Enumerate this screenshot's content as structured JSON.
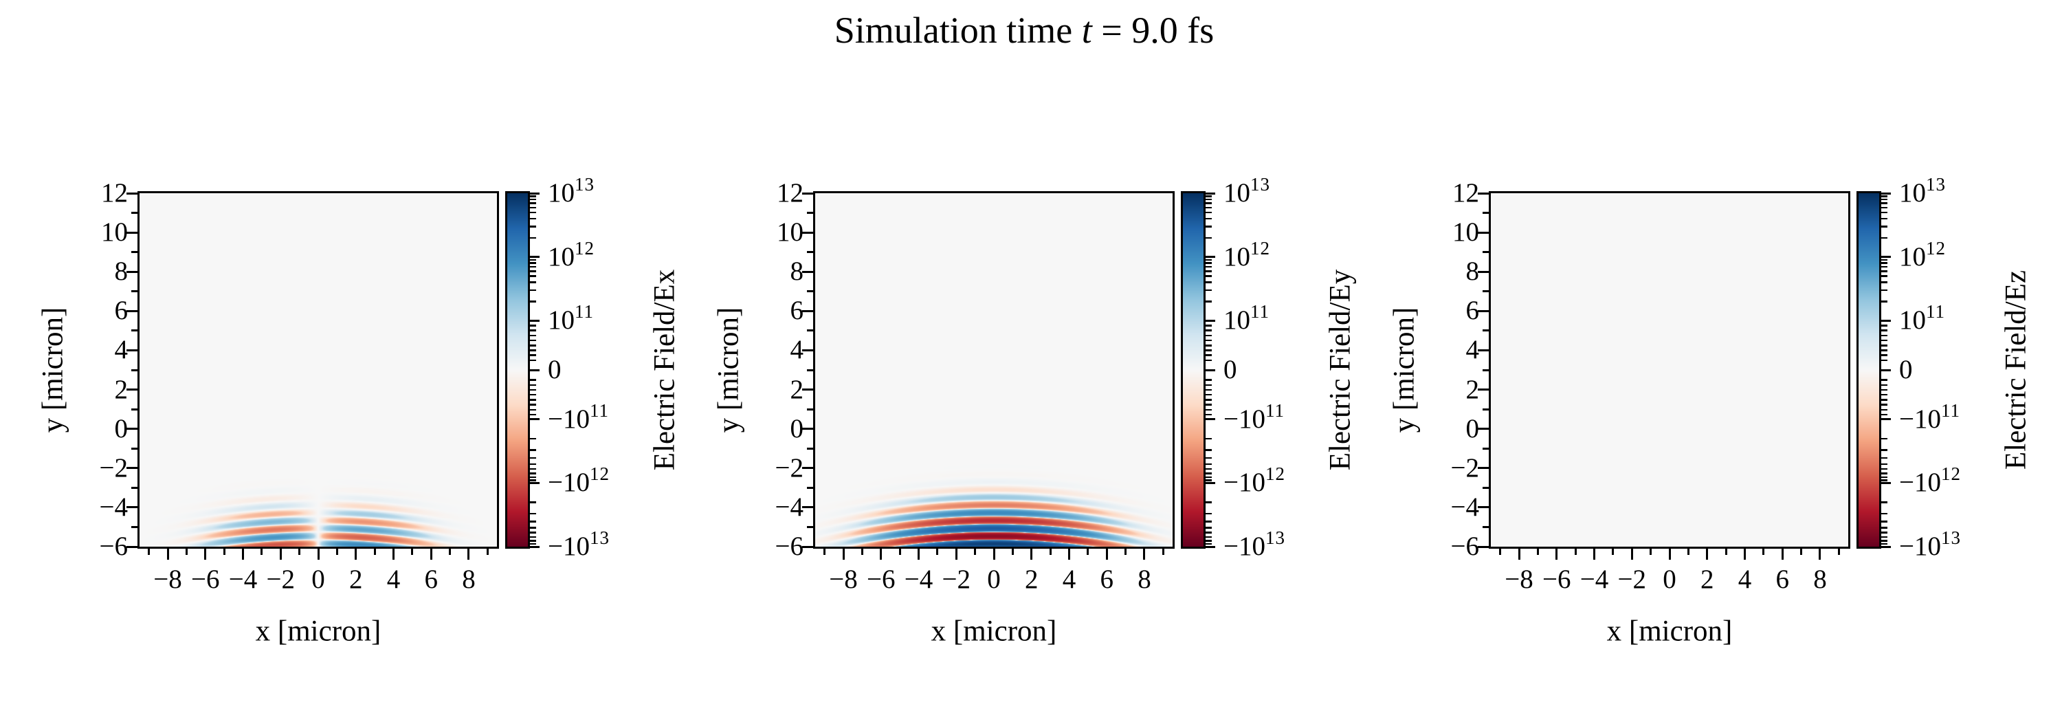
{
  "title": {
    "prefix": "Simulation time ",
    "var": "t",
    "suffix": " = 9.0 fs"
  },
  "chart_data": {
    "type": "heatmap",
    "figure_title": "Simulation time t = 9.0 fs",
    "simulation_time_fs": 9.0,
    "panels": [
      {
        "component": "Ex",
        "field_label": "Electric Field/Ex",
        "mode": "antisym",
        "amplitude": 1100000000000.0,
        "description": "weak antisymmetric striped pulse near bottom, red left / blue right, node at x=0, y from -6 to -3.4"
      },
      {
        "component": "Ey",
        "field_label": "Electric Field/Ey",
        "mode": "sym",
        "amplitude": 8000000000000.0,
        "description": "strong laser pulse, 7 alternating blue/red horizontal stripes curving downward at edges, centered x=0, y from -6 to -3.3"
      },
      {
        "component": "Ez",
        "field_label": "Electric Field/Ez",
        "mode": "zero",
        "amplitude": 0,
        "description": "field everywhere zero, uniform background"
      }
    ],
    "x": {
      "label": "x [micron]",
      "lim": [
        -9.5,
        9.5
      ],
      "major_ticks": [
        {
          "v": -8,
          "label": "−8"
        },
        {
          "v": -6,
          "label": "−6"
        },
        {
          "v": -4,
          "label": "−4"
        },
        {
          "v": -2,
          "label": "−2"
        },
        {
          "v": 0,
          "label": "0"
        },
        {
          "v": 2,
          "label": "2"
        },
        {
          "v": 4,
          "label": "4"
        },
        {
          "v": 6,
          "label": "6"
        },
        {
          "v": 8,
          "label": "8"
        }
      ],
      "minor_ticks": [
        -9,
        -7,
        -5,
        -3,
        -1,
        1,
        3,
        5,
        7,
        9
      ]
    },
    "y": {
      "label": "y [micron]",
      "lim": [
        -6,
        12
      ],
      "major_ticks": [
        {
          "v": 12,
          "label": "12"
        },
        {
          "v": 10,
          "label": "10"
        },
        {
          "v": 8,
          "label": "8"
        },
        {
          "v": 6,
          "label": "6"
        },
        {
          "v": 4,
          "label": "4"
        },
        {
          "v": 2,
          "label": "2"
        },
        {
          "v": 0,
          "label": "0"
        },
        {
          "v": -2,
          "label": "−2"
        },
        {
          "v": -4,
          "label": "−4"
        },
        {
          "v": -6,
          "label": "−6"
        }
      ],
      "minor_ticks": [
        11,
        9,
        7,
        5,
        3,
        1,
        -1,
        -3,
        -5
      ]
    },
    "colorbar": {
      "scale": "symlog",
      "vmax": 10000000000000.0,
      "vmin": -10000000000000.0,
      "linthresh": 100000000000.0,
      "lin_frac": 0.14,
      "decade_frac": 0.18,
      "cmap_name": "RdBu",
      "cmap_stops": [
        "#67001f",
        "#b2182b",
        "#d6604d",
        "#f4a582",
        "#fddbc7",
        "#f7f7f7",
        "#d1e5f0",
        "#92c5de",
        "#4393c3",
        "#2166ac",
        "#053061"
      ],
      "major_ticks": [
        {
          "frac": 0.0,
          "base": "10",
          "exp": "13",
          "value": 10000000000000.0
        },
        {
          "frac": 0.18,
          "base": "10",
          "exp": "12",
          "value": 1000000000000.0
        },
        {
          "frac": 0.36,
          "base": "10",
          "exp": "11",
          "value": 100000000000.0
        },
        {
          "frac": 0.5,
          "base": "0",
          "exp": "",
          "value": 0
        },
        {
          "frac": 0.64,
          "base": "−10",
          "exp": "11",
          "value": -100000000000.0
        },
        {
          "frac": 0.82,
          "base": "−10",
          "exp": "12",
          "value": -1000000000000.0
        },
        {
          "frac": 1.0,
          "base": "−10",
          "exp": "13",
          "value": -10000000000000.0
        }
      ]
    },
    "field_model": {
      "wavelength_micron": 0.8,
      "phase_y_offset": 0.15,
      "wavefront_curvature": 0.012,
      "x_sigma": 3.8,
      "x_node_scale": 2.2,
      "y_center": -6.5,
      "y_sigma": 1.55,
      "pulse_y_extent": [
        -6,
        -3.3
      ],
      "background_value": 0,
      "background_color": "#f7f7f7"
    }
  }
}
